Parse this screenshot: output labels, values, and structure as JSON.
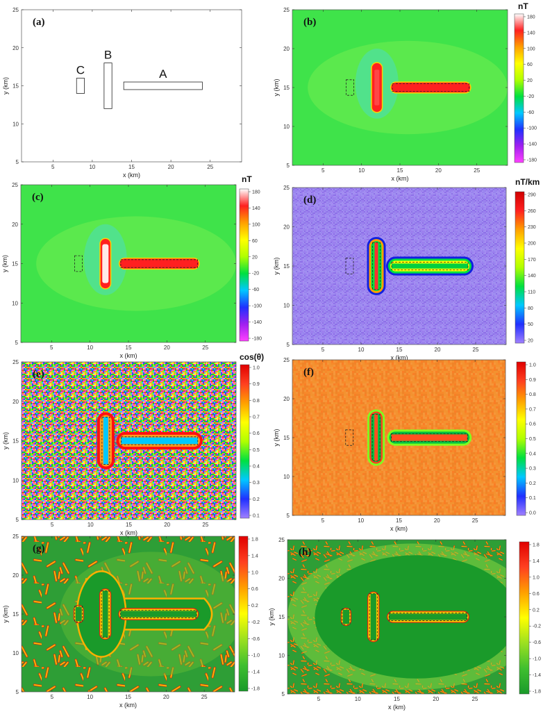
{
  "chart_data": [
    {
      "id": "a",
      "type": "diagram",
      "panel_label": "(a)",
      "xlabel": "x (km)",
      "ylabel": "y (km)",
      "xlim": [
        1,
        29
      ],
      "ylim": [
        5,
        25
      ],
      "xticks": [
        5,
        10,
        15,
        20,
        25
      ],
      "yticks": [
        5,
        10,
        15,
        20,
        25
      ],
      "background": "#ffffff",
      "bodies": [
        {
          "name": "A",
          "x": [
            14,
            24
          ],
          "y": [
            14.5,
            15.5
          ]
        },
        {
          "name": "B",
          "x": [
            11.5,
            12.5
          ],
          "y": [
            12,
            18
          ]
        },
        {
          "name": "C",
          "x": [
            8,
            9
          ],
          "y": [
            14,
            16
          ]
        }
      ]
    },
    {
      "id": "b",
      "type": "heatmap",
      "panel_label": "(b)",
      "xlabel": "x (km)",
      "ylabel": "y (km)",
      "xlim": [
        1,
        29
      ],
      "ylim": [
        5,
        25
      ],
      "xticks": [
        5,
        10,
        15,
        20,
        25
      ],
      "yticks": [
        5,
        10,
        15,
        20,
        25
      ],
      "unit": "nT",
      "colorbar": {
        "ticks": [
          "180",
          "140",
          "100",
          "60",
          "20",
          "-20",
          "-60",
          "-100",
          "-140",
          "-180"
        ],
        "colors": [
          "#ff40ff",
          "#a020f0",
          "#2030ff",
          "#00c8ff",
          "#00e040",
          "#b0ff00",
          "#ffff00",
          "#ffa000",
          "#ff2020",
          "#ffffff"
        ]
      },
      "background": "#3fe34a",
      "style": "anomaly"
    },
    {
      "id": "c",
      "type": "heatmap",
      "panel_label": "(c)",
      "xlabel": "x (km)",
      "ylabel": "y (km)",
      "xlim": [
        1,
        29
      ],
      "ylim": [
        5,
        25
      ],
      "xticks": [
        5,
        10,
        15,
        20,
        25
      ],
      "yticks": [
        5,
        10,
        15,
        20,
        25
      ],
      "unit": "nT",
      "colorbar": {
        "ticks": [
          "180",
          "140",
          "100",
          "60",
          "20",
          "-20",
          "-60",
          "-100",
          "-140",
          "-180"
        ],
        "colors": [
          "#ff40ff",
          "#a020f0",
          "#2030ff",
          "#00c8ff",
          "#00e040",
          "#b0ff00",
          "#ffff00",
          "#ffa000",
          "#ff2020",
          "#ffffff"
        ]
      },
      "background": "#3fe34a",
      "style": "anomaly"
    },
    {
      "id": "d",
      "type": "heatmap",
      "panel_label": "(d)",
      "xlabel": "x (km)",
      "ylabel": "y (km)",
      "xlim": [
        1,
        29
      ],
      "ylim": [
        5,
        25
      ],
      "xticks": [
        5,
        10,
        15,
        20,
        25
      ],
      "yticks": [
        5,
        10,
        15,
        20,
        25
      ],
      "unit": "nT/km",
      "colorbar": {
        "ticks": [
          "290",
          "260",
          "230",
          "200",
          "170",
          "140",
          "110",
          "80",
          "50",
          "20"
        ],
        "colors": [
          "#a080ff",
          "#2030ff",
          "#00c8ff",
          "#00e040",
          "#b0ff00",
          "#ffff00",
          "#ffa000",
          "#ff2020",
          "#d00000"
        ]
      },
      "background": "#9b7fee",
      "style": "gradient"
    },
    {
      "id": "e",
      "type": "heatmap",
      "panel_label": "(e)",
      "xlabel": "x (km)",
      "ylabel": "y (km)",
      "xlim": [
        1,
        29
      ],
      "ylim": [
        5,
        25
      ],
      "xticks": [
        5,
        10,
        15,
        20,
        25
      ],
      "yticks": [
        5,
        10,
        15,
        20,
        25
      ],
      "unit": "cos(θ)",
      "colorbar": {
        "ticks": [
          "1.0",
          "0.9",
          "0.8",
          "0.7",
          "0.6",
          "0.5",
          "0.4",
          "0.3",
          "0.2",
          "0.1"
        ],
        "colors": [
          "#a080ff",
          "#2030ff",
          "#00c8ff",
          "#00e040",
          "#b0ff00",
          "#ffff00",
          "#ffa000",
          "#ff4020",
          "#e00000"
        ]
      },
      "background": "#9a8a70",
      "style": "noise"
    },
    {
      "id": "f",
      "type": "heatmap",
      "panel_label": "(f)",
      "xlabel": "x (km)",
      "ylabel": "y (km)",
      "xlim": [
        1,
        29
      ],
      "ylim": [
        5,
        25
      ],
      "xticks": [
        5,
        10,
        15,
        20,
        25
      ],
      "yticks": [
        5,
        10,
        15,
        20,
        25
      ],
      "unit": "",
      "colorbar": {
        "ticks": [
          "1.0",
          "0.9",
          "0.8",
          "0.7",
          "0.6",
          "0.5",
          "0.4",
          "0.3",
          "0.2",
          "0.1",
          "0.0"
        ],
        "colors": [
          "#a080ff",
          "#2030ff",
          "#00c8ff",
          "#00e040",
          "#b0ff00",
          "#ffff00",
          "#ffa000",
          "#ff4020",
          "#e00000"
        ]
      },
      "background": "#f7892a",
      "style": "halo"
    },
    {
      "id": "g",
      "type": "heatmap",
      "panel_label": "(g)",
      "xlabel": "x (km)",
      "ylabel": "y (km)",
      "xlim": [
        1,
        29
      ],
      "ylim": [
        5,
        25
      ],
      "xticks": [
        5,
        10,
        15,
        20,
        25
      ],
      "yticks": [
        5,
        10,
        15,
        20,
        25
      ],
      "unit": "",
      "colorbar": {
        "ticks": [
          "1.8",
          "1.4",
          "1.0",
          "0.6",
          "0.2",
          "-0.2",
          "-0.6",
          "-1.0",
          "-1.4",
          "-1.8"
        ],
        "colors": [
          "#1a9a2a",
          "#3fbf30",
          "#9be020",
          "#ffff00",
          "#ffa000",
          "#ff4020",
          "#e00000"
        ]
      },
      "background": "#2e9e36",
      "style": "tilt"
    },
    {
      "id": "h",
      "type": "heatmap",
      "panel_label": "(h)",
      "xlabel": "x (km)",
      "ylabel": "y (km)",
      "xlim": [
        1,
        29
      ],
      "ylim": [
        5,
        25
      ],
      "xticks": [
        5,
        10,
        15,
        20,
        25
      ],
      "yticks": [
        5,
        10,
        15,
        20,
        25
      ],
      "unit": "",
      "colorbar": {
        "ticks": [
          "1.8",
          "1.4",
          "1.0",
          "0.6",
          "0.2",
          "-0.2",
          "-0.6",
          "-1.0",
          "-1.4",
          "-1.8"
        ],
        "colors": [
          "#1a9a2a",
          "#3fbf30",
          "#9be020",
          "#ffff00",
          "#ffa000",
          "#ff4020",
          "#e00000"
        ]
      },
      "background": "#2e9e36",
      "style": "tilt"
    }
  ]
}
